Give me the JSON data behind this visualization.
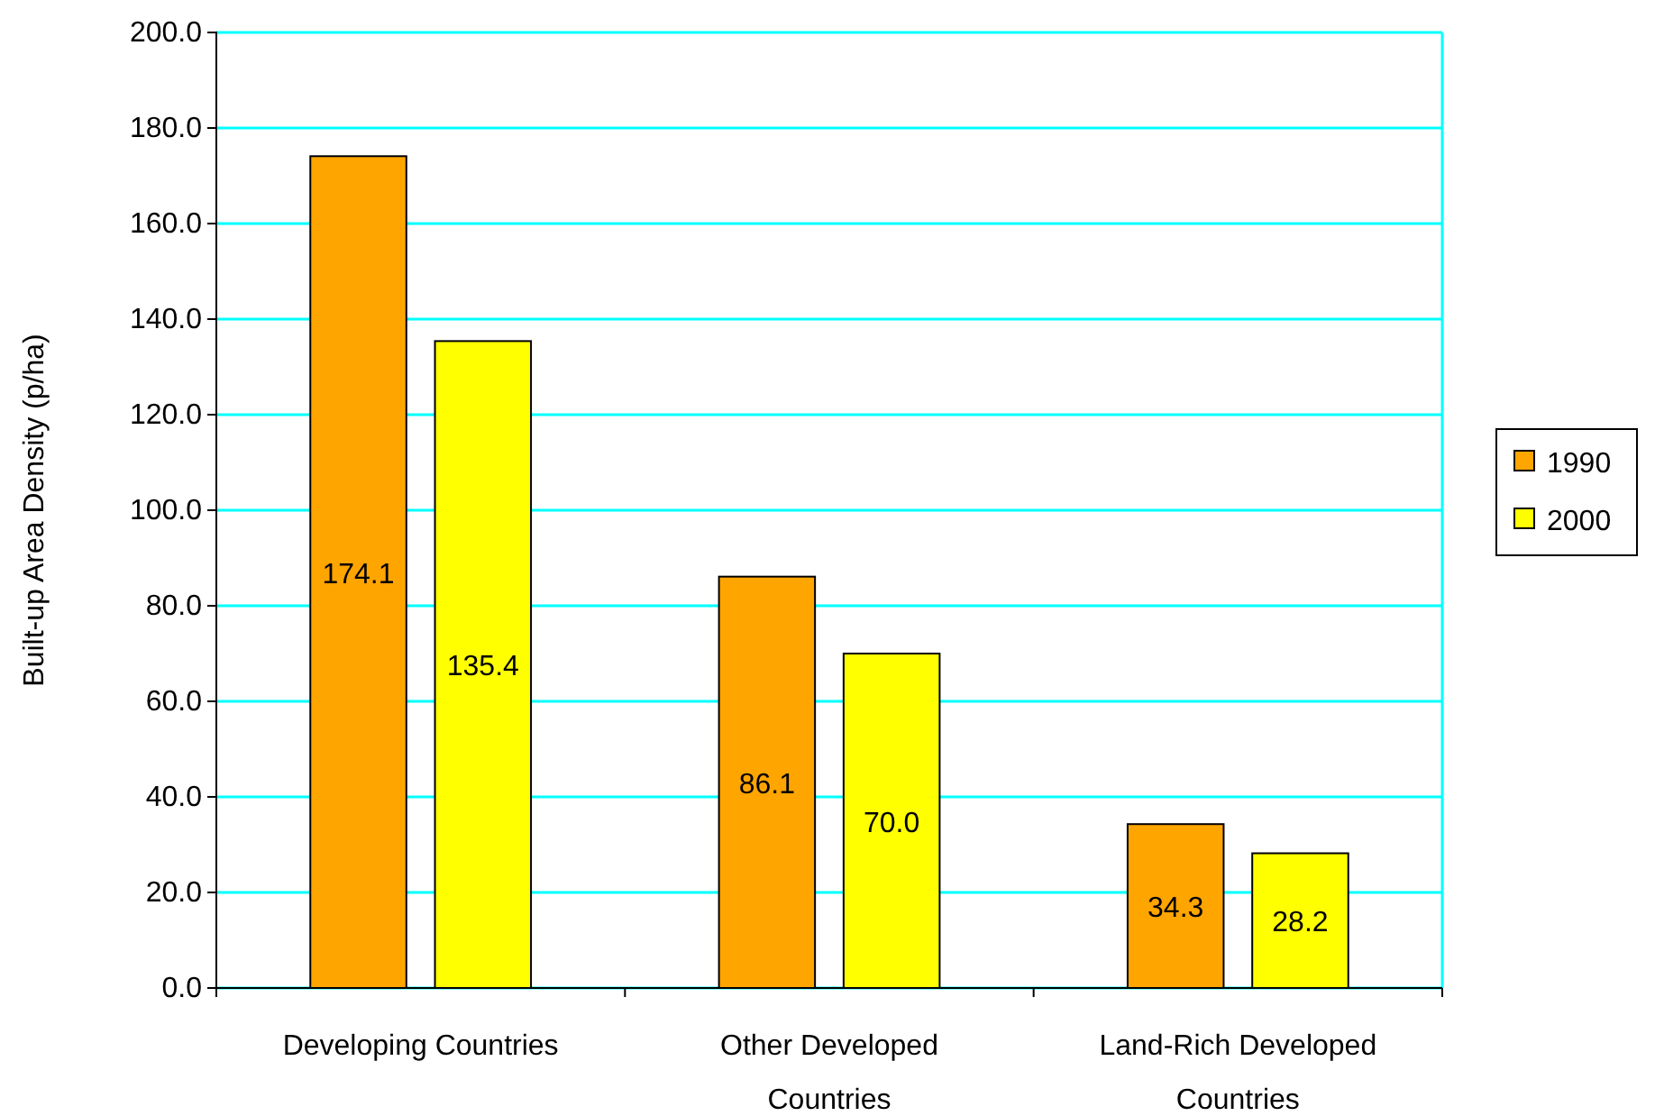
{
  "chart_data": {
    "type": "bar",
    "ylabel": "Built-up Area Density (p/ha)",
    "categories": [
      "Developing Countries",
      "Other Developed Countries",
      "Land-Rich Developed Countries"
    ],
    "series": [
      {
        "name": "1990",
        "color": "#ffa500",
        "values": [
          174.1,
          86.1,
          34.3
        ],
        "value_labels": [
          "174.1",
          "86.1",
          "34.3"
        ]
      },
      {
        "name": "2000",
        "color": "#ffff00",
        "values": [
          135.4,
          70.0,
          28.2
        ],
        "value_labels": [
          "135.4",
          "70.0",
          "28.2"
        ]
      }
    ],
    "ylim": [
      0,
      200
    ],
    "yticks": [
      {
        "value": 0,
        "label": "0.0"
      },
      {
        "value": 20,
        "label": "20.0"
      },
      {
        "value": 40,
        "label": "40.0"
      },
      {
        "value": 60,
        "label": "60.0"
      },
      {
        "value": 80,
        "label": "80.0"
      },
      {
        "value": 100,
        "label": "100.0"
      },
      {
        "value": 120,
        "label": "120.0"
      },
      {
        "value": 140,
        "label": "140.0"
      },
      {
        "value": 160,
        "label": "160.0"
      },
      {
        "value": 180,
        "label": "180.0"
      },
      {
        "value": 200,
        "label": "200.0"
      }
    ],
    "grid": "y",
    "legend": "right"
  }
}
